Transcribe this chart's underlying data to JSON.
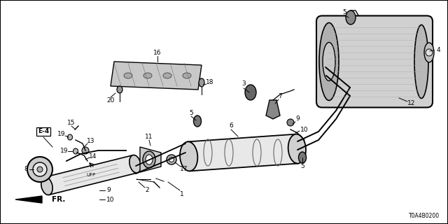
{
  "bg_color": "#ffffff",
  "border_color": "#000000",
  "diagram_code": "T0A4B0200",
  "text_color": "#000000",
  "line_color": "#000000",
  "border_width": 1.5,
  "figsize": [
    6.4,
    3.2
  ],
  "dpi": 100
}
